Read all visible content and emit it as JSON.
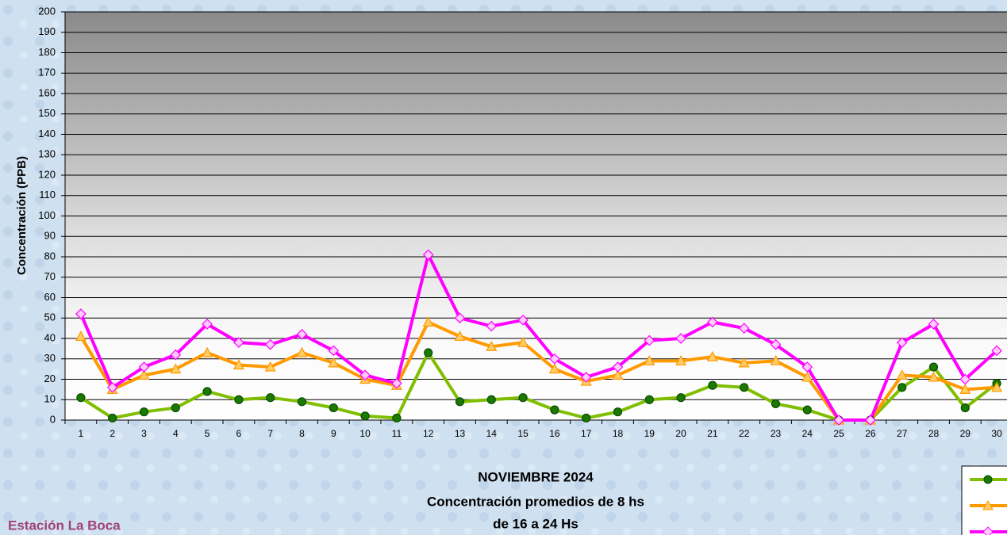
{
  "chart_data": {
    "type": "line",
    "title": "NOVIEMBRE 2024",
    "subtitle": [
      "Concentración promedios de 8 hs",
      "de 16 a 24 Hs"
    ],
    "annotation": "Estación La Boca",
    "ylabel": "Concentración  (PPB)",
    "categories": [
      "1",
      "2",
      "3",
      "4",
      "5",
      "6",
      "7",
      "8",
      "9",
      "10",
      "11",
      "12",
      "13",
      "14",
      "15",
      "16",
      "17",
      "18",
      "19",
      "20",
      "21",
      "22",
      "23",
      "24",
      "25",
      "26",
      "27",
      "28",
      "29",
      "30"
    ],
    "series": [
      {
        "color": "#7fbf00",
        "marker": "circle",
        "marker_color": "#1a7a00",
        "values": [
          11,
          1,
          4,
          6,
          14,
          10,
          11,
          9,
          6,
          2,
          1,
          33,
          9,
          10,
          11,
          5,
          1,
          4,
          10,
          11,
          17,
          16,
          8,
          5,
          0,
          0,
          16,
          26,
          6,
          18
        ]
      },
      {
        "color": "#ff9900",
        "marker": "triangle",
        "marker_color": "#ffcc66",
        "values": [
          41,
          15,
          22,
          25,
          33,
          27,
          26,
          33,
          28,
          20,
          17,
          48,
          41,
          36,
          38,
          25,
          19,
          22,
          29,
          29,
          31,
          28,
          29,
          21,
          0,
          0,
          22,
          21,
          15,
          16
        ]
      },
      {
        "color": "#ff00ff",
        "marker": "diamond",
        "marker_color": "#ffccff",
        "values": [
          52,
          16,
          26,
          32,
          47,
          38,
          37,
          42,
          34,
          22,
          18,
          81,
          50,
          46,
          49,
          30,
          21,
          26,
          39,
          40,
          48,
          45,
          37,
          26,
          0,
          0,
          38,
          47,
          20,
          34
        ]
      }
    ],
    "ylim": [
      0,
      200
    ],
    "yticks": [
      0,
      10,
      20,
      30,
      40,
      50,
      60,
      70,
      80,
      90,
      100,
      110,
      120,
      130,
      140,
      150,
      160,
      170,
      180,
      190,
      200
    ],
    "grid": true,
    "legend": "bottom-right"
  }
}
